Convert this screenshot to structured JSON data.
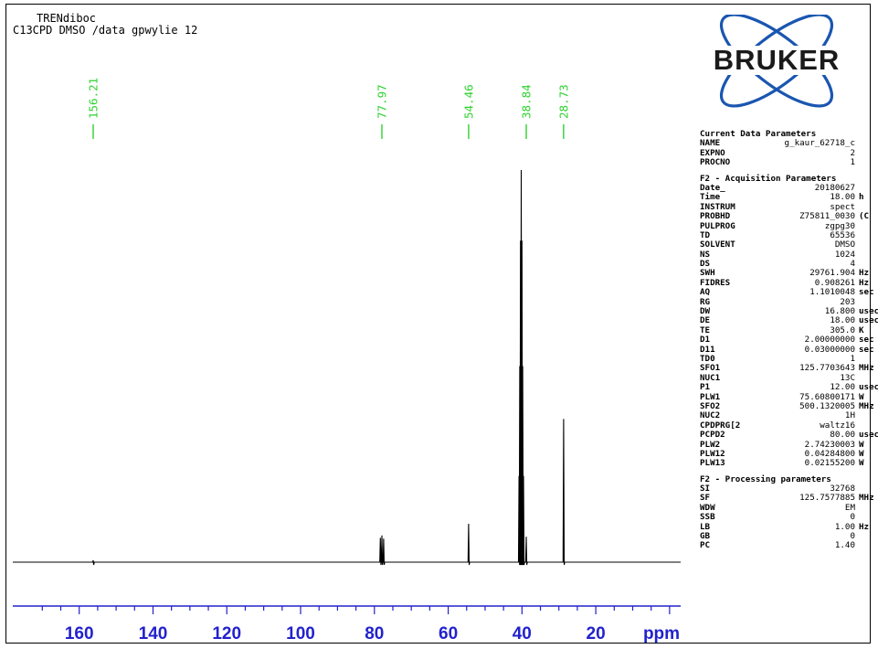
{
  "header": {
    "title": "TRENdiboc",
    "subtitle": "C13CPD DMSO /data gpwylie 12"
  },
  "logo": {
    "text": "BRUKER"
  },
  "chart_data": {
    "type": "line",
    "title": "TRENdiboc",
    "xlabel": "ppm",
    "ylabel": "",
    "xlim": [
      178,
      -3
    ],
    "x_reversed": true,
    "xticks": [
      160,
      140,
      120,
      100,
      80,
      60,
      40,
      20
    ],
    "xtick_labels": [
      "160",
      "140",
      "120",
      "100",
      "80",
      "60",
      "40",
      "20"
    ],
    "grid": false,
    "legend": "none",
    "peak_labels": [
      "156.21",
      "77.97",
      "54.46",
      "38.84",
      "28.73"
    ],
    "peak_positions": [
      156.21,
      77.97,
      54.46,
      38.84,
      28.73
    ],
    "series": [
      {
        "peaks": [
          {
            "x": 156.21,
            "y": 0.005
          },
          {
            "x": 78.4,
            "y": 0.062
          },
          {
            "x": 77.97,
            "y": 0.068
          },
          {
            "x": 77.5,
            "y": 0.06
          },
          {
            "x": 54.46,
            "y": 0.098
          },
          {
            "x": 40.8,
            "y": 0.22
          },
          {
            "x": 40.6,
            "y": 0.5
          },
          {
            "x": 40.4,
            "y": 0.82
          },
          {
            "x": 40.2,
            "y": 1.0
          },
          {
            "x": 40.0,
            "y": 0.82
          },
          {
            "x": 39.8,
            "y": 0.5
          },
          {
            "x": 39.6,
            "y": 0.22
          },
          {
            "x": 38.84,
            "y": 0.065
          },
          {
            "x": 28.73,
            "y": 0.365
          }
        ]
      }
    ],
    "colors": {
      "spectrum": "#000000",
      "peak_label": "#2fd12f",
      "axis": "#2222cc"
    }
  },
  "params": {
    "current": {
      "heading": "Current Data Parameters",
      "rows": [
        {
          "k": "NAME",
          "v": "g_kaur_62718_c",
          "u": ""
        },
        {
          "k": "EXPNO",
          "v": "2",
          "u": ""
        },
        {
          "k": "PROCNO",
          "v": "1",
          "u": ""
        }
      ]
    },
    "acq": {
      "heading": "F2 - Acquisition Parameters",
      "rows": [
        {
          "k": "Date_",
          "v": "20180627",
          "u": ""
        },
        {
          "k": "Time",
          "v": "18.00",
          "u": "h"
        },
        {
          "k": "INSTRUM",
          "v": "spect",
          "u": ""
        },
        {
          "k": "PROBHD",
          "v": "Z75811_0030",
          "u": "(C"
        },
        {
          "k": "PULPROG",
          "v": "zgpg30",
          "u": ""
        },
        {
          "k": "TD",
          "v": "65536",
          "u": ""
        },
        {
          "k": "SOLVENT",
          "v": "DMSO",
          "u": ""
        },
        {
          "k": "NS",
          "v": "1024",
          "u": ""
        },
        {
          "k": "DS",
          "v": "4",
          "u": ""
        },
        {
          "k": "SWH",
          "v": "29761.904",
          "u": "Hz"
        },
        {
          "k": "FIDRES",
          "v": "0.908261",
          "u": "Hz"
        },
        {
          "k": "AQ",
          "v": "1.1010048",
          "u": "sec"
        },
        {
          "k": "RG",
          "v": "203",
          "u": ""
        },
        {
          "k": "DW",
          "v": "16.800",
          "u": "usec"
        },
        {
          "k": "DE",
          "v": "18.00",
          "u": "usec"
        },
        {
          "k": "TE",
          "v": "305.0",
          "u": "K"
        },
        {
          "k": "D1",
          "v": "2.00000000",
          "u": "sec"
        },
        {
          "k": "D11",
          "v": "0.03000000",
          "u": "sec"
        },
        {
          "k": "TD0",
          "v": "1",
          "u": ""
        },
        {
          "k": "SFO1",
          "v": "125.7703643",
          "u": "MHz"
        },
        {
          "k": "NUC1",
          "v": "13C",
          "u": ""
        },
        {
          "k": "P1",
          "v": "12.00",
          "u": "usec"
        },
        {
          "k": "PLW1",
          "v": "75.60800171",
          "u": "W"
        },
        {
          "k": "SFO2",
          "v": "500.1320005",
          "u": "MHz"
        },
        {
          "k": "NUC2",
          "v": "1H",
          "u": ""
        },
        {
          "k": "CPDPRG[2",
          "v": "waltz16",
          "u": ""
        },
        {
          "k": "PCPD2",
          "v": "80.00",
          "u": "usec"
        },
        {
          "k": "PLW2",
          "v": "2.74230003",
          "u": "W"
        },
        {
          "k": "PLW12",
          "v": "0.04284800",
          "u": "W"
        },
        {
          "k": "PLW13",
          "v": "0.02155200",
          "u": "W"
        }
      ]
    },
    "proc": {
      "heading": "F2 - Processing parameters",
      "rows": [
        {
          "k": "SI",
          "v": "32768",
          "u": ""
        },
        {
          "k": "SF",
          "v": "125.7577885",
          "u": "MHz"
        },
        {
          "k": "WDW",
          "v": "EM",
          "u": ""
        },
        {
          "k": "SSB",
          "v": "0",
          "u": ""
        },
        {
          "k": "LB",
          "v": "1.00",
          "u": "Hz"
        },
        {
          "k": "GB",
          "v": "0",
          "u": ""
        },
        {
          "k": "PC",
          "v": "1.40",
          "u": ""
        }
      ]
    }
  }
}
